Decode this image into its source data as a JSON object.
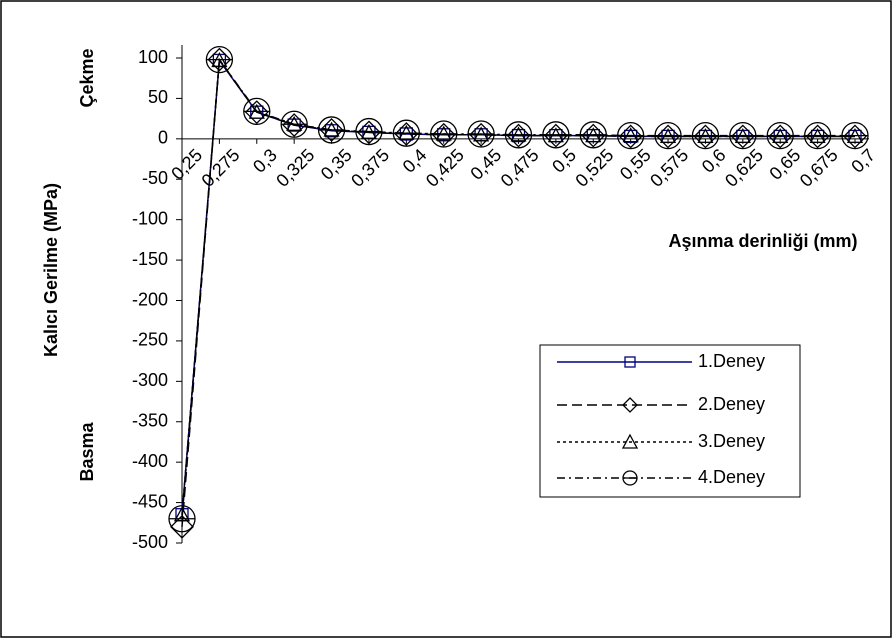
{
  "chart_data": {
    "type": "line",
    "y_label": "Kalıcı Gerilme (MPa)",
    "x_label": "Aşınma derinliği (mm)",
    "annotations": [
      "Çekme",
      "Basma"
    ],
    "categories": [
      "0,25",
      "0,275",
      "0,3",
      "0,325",
      "0,35",
      "0,375",
      "0,4",
      "0,425",
      "0,45",
      "0,475",
      "0,5",
      "0,525",
      "0,55",
      "0,575",
      "0,6",
      "0,625",
      "0,65",
      "0,675",
      "0,7"
    ],
    "series": [
      {
        "name": "1.Deney",
        "color": "#000080",
        "dash": "none",
        "marker": "square",
        "values": [
          -465,
          97,
          33,
          17,
          10,
          8,
          6,
          5,
          5,
          4,
          4,
          4,
          3,
          3,
          3,
          3,
          3,
          3,
          3
        ]
      },
      {
        "name": "2.Deney",
        "color": "#000000",
        "dash": "10,5",
        "marker": "diamond",
        "values": [
          -480,
          98,
          33,
          17,
          11,
          8,
          6,
          5,
          5,
          4,
          4,
          4,
          3,
          3,
          3,
          3,
          3,
          3,
          3
        ]
      },
      {
        "name": "3.Deney",
        "color": "#000000",
        "dash": "3,3",
        "marker": "triangle",
        "values": [
          -465,
          97,
          33,
          18,
          11,
          8,
          7,
          6,
          5,
          5,
          4,
          4,
          4,
          3,
          3,
          3,
          3,
          3,
          3
        ]
      },
      {
        "name": "4.Deney",
        "color": "#000000",
        "dash": "8,4,2,4",
        "marker": "circle",
        "values": [
          -470,
          98,
          34,
          18,
          11,
          9,
          7,
          6,
          6,
          5,
          5,
          5,
          4,
          4,
          4,
          4,
          4,
          4,
          4
        ]
      }
    ],
    "ylim": [
      -500,
      100
    ],
    "yticks": [
      100,
      50,
      0,
      -50,
      -100,
      -150,
      -200,
      -250,
      -300,
      -350,
      -400,
      -450,
      -500
    ],
    "grid": false,
    "legend": "right"
  }
}
